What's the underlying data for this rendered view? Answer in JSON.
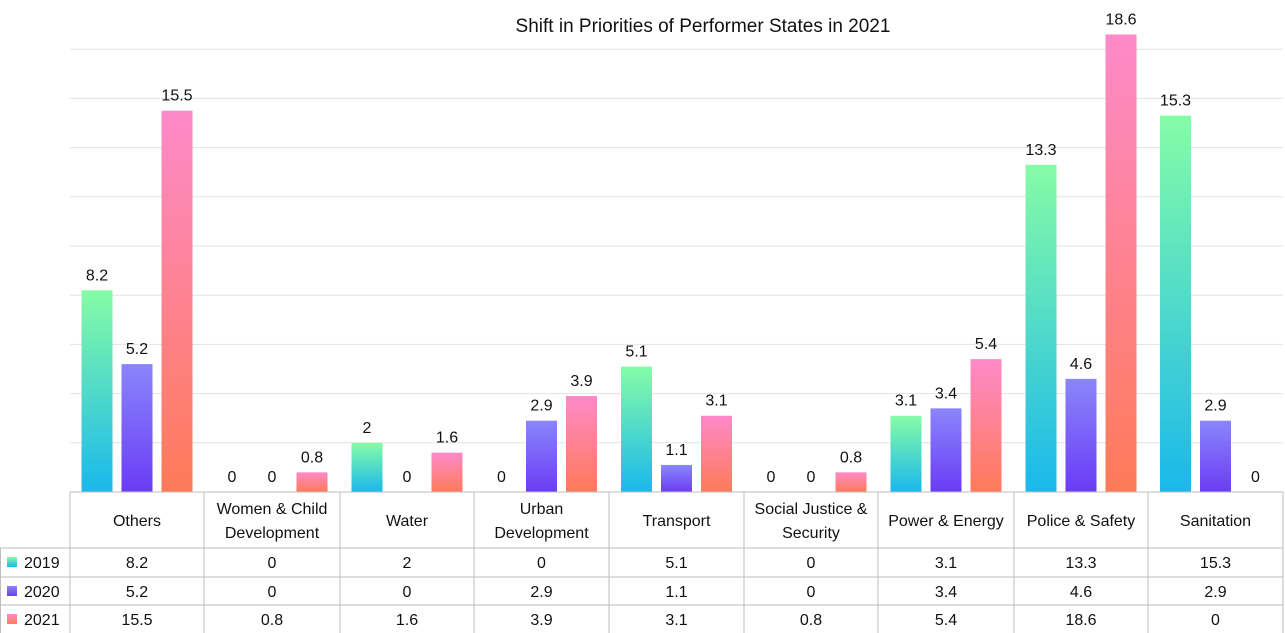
{
  "chart_data": {
    "type": "bar",
    "title": "Shift in Priorities of Performer States in 2021",
    "categories": [
      "Others",
      "Women & Child Development",
      "Water",
      "Urban Development",
      "Transport",
      "Social Justice & Security",
      "Power & Energy",
      "Police & Safety",
      "Sanitation"
    ],
    "category_lines": [
      [
        "Others"
      ],
      [
        "Women & Child",
        "Development"
      ],
      [
        "Water"
      ],
      [
        "Urban",
        "Development"
      ],
      [
        "Transport"
      ],
      [
        "Social Justice &",
        "Security"
      ],
      [
        "Power & Energy"
      ],
      [
        "Police & Safety"
      ],
      [
        "Sanitation"
      ]
    ],
    "series": [
      {
        "name": "2019",
        "values": [
          8.2,
          0,
          2,
          0,
          5.1,
          0,
          3.1,
          13.3,
          15.3
        ],
        "labels": [
          "8.2",
          "0",
          "2",
          "0",
          "5.1",
          "0",
          "3.1",
          "13.3",
          "15.3"
        ],
        "color_top": "#86fca6",
        "color_bottom": "#1ab8ec"
      },
      {
        "name": "2020",
        "values": [
          5.2,
          0,
          0,
          2.9,
          1.1,
          0,
          3.4,
          4.6,
          2.9
        ],
        "labels": [
          "5.2",
          "0",
          "0",
          "2.9",
          "1.1",
          "0",
          "3.4",
          "4.6",
          "2.9"
        ],
        "color_top": "#8a86fb",
        "color_bottom": "#6a3cf5"
      },
      {
        "name": "2021",
        "values": [
          15.5,
          0.8,
          1.6,
          3.9,
          3.1,
          0.8,
          5.4,
          18.6,
          0
        ],
        "labels": [
          "15.5",
          "0.8",
          "1.6",
          "3.9",
          "3.1",
          "0.8",
          "5.4",
          "18.6",
          "0"
        ],
        "color_top": "#fd8ac9",
        "color_bottom": "#fe7a58"
      }
    ],
    "ylim": [
      0,
      18
    ],
    "grid": true,
    "legend": "data-table",
    "xlabel": "",
    "ylabel": ""
  }
}
